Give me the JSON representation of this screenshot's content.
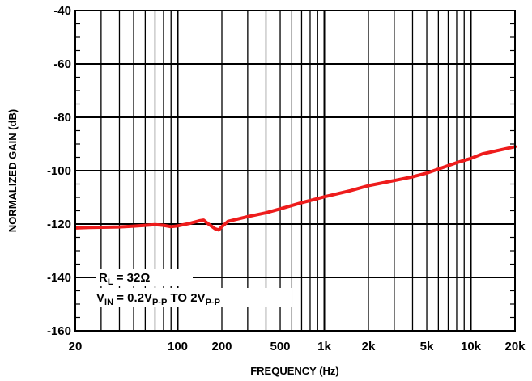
{
  "chart_data": {
    "type": "line",
    "title": "",
    "xlabel": "FREQUENCY (Hz)",
    "ylabel": "NORMALIZED GAIN (dB)",
    "xscale": "log",
    "xlim": [
      20,
      20000
    ],
    "ylim": [
      -160,
      -40
    ],
    "grid": true,
    "series_color": "#ee1c1c",
    "x_ticks": [
      {
        "value": 20,
        "label": "20"
      },
      {
        "value": 100,
        "label": "100"
      },
      {
        "value": 200,
        "label": "200"
      },
      {
        "value": 500,
        "label": "500"
      },
      {
        "value": 1000,
        "label": "1k"
      },
      {
        "value": 2000,
        "label": "2k"
      },
      {
        "value": 5000,
        "label": "5k"
      },
      {
        "value": 10000,
        "label": "10k"
      },
      {
        "value": 20000,
        "label": "20k"
      }
    ],
    "y_ticks": [
      {
        "value": -40,
        "label": "-40"
      },
      {
        "value": -60,
        "label": "-60"
      },
      {
        "value": -80,
        "label": "-80"
      },
      {
        "value": -100,
        "label": "-100"
      },
      {
        "value": -120,
        "label": "-120"
      },
      {
        "value": -140,
        "label": "-140"
      },
      {
        "value": -160,
        "label": "-160"
      }
    ],
    "series": [
      {
        "x": [
          20,
          25,
          30,
          40,
          50,
          60,
          70,
          80,
          90,
          100,
          110,
          120,
          140,
          150,
          160,
          180,
          190,
          200,
          220,
          300,
          400,
          500,
          700,
          1000,
          1500,
          2000,
          3000,
          4000,
          5000,
          6000,
          7000,
          8000,
          10000,
          12000,
          15000,
          20000
        ],
        "y": [
          -121.5,
          -121.3,
          -121.2,
          -121.1,
          -120.8,
          -120.5,
          -120.2,
          -120.5,
          -121.0,
          -120.7,
          -120.2,
          -119.8,
          -118.8,
          -118.5,
          -119.8,
          -121.8,
          -122.2,
          -121.0,
          -119.0,
          -117.2,
          -115.8,
          -114.3,
          -112.0,
          -109.8,
          -107.5,
          -105.6,
          -103.7,
          -102.3,
          -100.9,
          -99.4,
          -98.1,
          -97.0,
          -95.4,
          -93.7,
          -92.5,
          -91.0
        ]
      }
    ],
    "annotations": [
      {
        "main": "R",
        "sub": "L",
        "tail": " = 32Ω"
      },
      {
        "main": "V",
        "sub": "IN",
        "mid": " = 0.2V",
        "sub2": "P-P",
        "mid2": " TO 2V",
        "sub3": "P-P"
      }
    ]
  }
}
